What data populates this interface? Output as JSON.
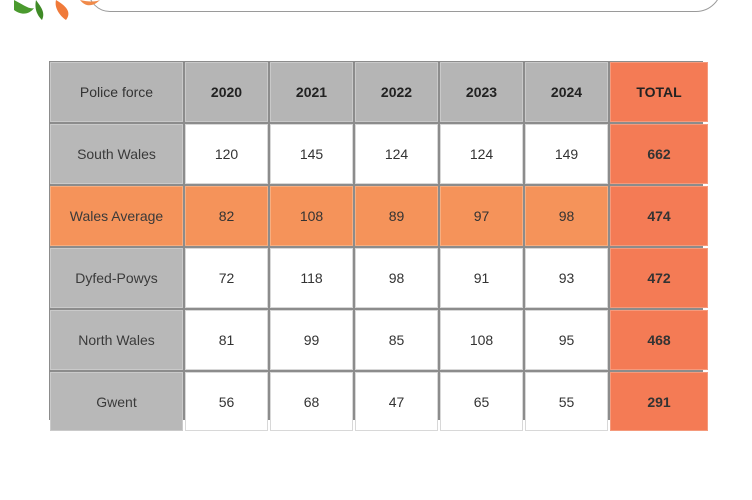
{
  "table": {
    "header": {
      "label": "Police force",
      "years": [
        "2020",
        "2021",
        "2022",
        "2023",
        "2024"
      ],
      "total": "TOTAL"
    },
    "rows": [
      {
        "name": "South Wales",
        "values": [
          "120",
          "145",
          "124",
          "124",
          "149"
        ],
        "total": "662",
        "highlight": false
      },
      {
        "name": "Wales Average",
        "values": [
          "82",
          "108",
          "89",
          "97",
          "98"
        ],
        "total": "474",
        "highlight": true
      },
      {
        "name": "Dyfed-Powys",
        "values": [
          "72",
          "118",
          "98",
          "91",
          "93"
        ],
        "total": "472",
        "highlight": false
      },
      {
        "name": "North Wales",
        "values": [
          "81",
          "99",
          "85",
          "108",
          "95"
        ],
        "total": "468",
        "highlight": false
      },
      {
        "name": "Gwent",
        "values": [
          "56",
          "68",
          "47",
          "65",
          "55"
        ],
        "total": "291",
        "highlight": false
      }
    ]
  },
  "colors": {
    "header_gray": "#b5b5b5",
    "total_orange": "#f47b55",
    "average_orange": "#f5935a",
    "logo_green": "#4a9a2e",
    "logo_orange": "#f07a3a"
  },
  "logo": {
    "icon": "leaf-logo-icon"
  }
}
